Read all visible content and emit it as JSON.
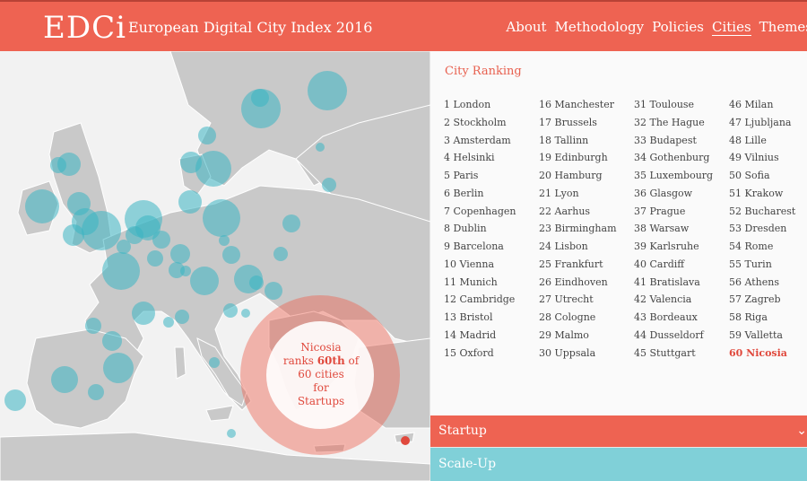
{
  "header": {
    "logo": "EDCi",
    "subtitle": "European Digital City Index 2016",
    "nav": [
      {
        "label": "About"
      },
      {
        "label": "Methodology"
      },
      {
        "label": "Policies"
      },
      {
        "label": "Cities",
        "active": true
      },
      {
        "label": "Themes"
      }
    ]
  },
  "colors": {
    "brand": "#ee6352",
    "bubble": "#3ab4c2",
    "scaleup": "#80d0d8",
    "highlight": "#e0493d"
  },
  "callout": {
    "line1": "Nicosia",
    "line2_pre": "ranks ",
    "line2_bold": "60th",
    "line2_post": " of",
    "line3": "60 cities",
    "line4": "for",
    "line5": "Startups"
  },
  "ranking": {
    "title": "City Ranking",
    "columns": [
      [
        "1 London",
        "2 Stockholm",
        "3 Amsterdam",
        "4 Helsinki",
        "5 Paris",
        "6 Berlin",
        "7 Copenhagen",
        "8 Dublin",
        "9 Barcelona",
        "10 Vienna",
        "11 Munich",
        "12 Cambridge",
        "13 Bristol",
        "14 Madrid",
        "15 Oxford"
      ],
      [
        "16 Manchester",
        "17 Brussels",
        "18 Tallinn",
        "19 Edinburgh",
        "20 Hamburg",
        "21 Lyon",
        "22 Aarhus",
        "23 Birmingham",
        "24 Lisbon",
        "25 Frankfurt",
        "26 Eindhoven",
        "27 Utrecht",
        "28 Cologne",
        "29 Malmo",
        "30 Uppsala"
      ],
      [
        "31 Toulouse",
        "32 The Hague",
        "33 Budapest",
        "34 Gothenburg",
        "35 Luxembourg",
        "36 Glasgow",
        "37 Prague",
        "38 Warsaw",
        "39 Karlsruhe",
        "40 Cardiff",
        "41 Bratislava",
        "42 Valencia",
        "43 Bordeaux",
        "44 Dusseldorf",
        "45 Stuttgart"
      ],
      [
        "46 Milan",
        "47 Ljubljana",
        "48 Lille",
        "49 Vilnius",
        "50 Sofia",
        "51 Krakow",
        "52 Bucharest",
        "53 Dresden",
        "54 Rome",
        "55 Turin",
        "56 Athens",
        "57 Zagreb",
        "58 Riga",
        "59 Valletta",
        "60 Nicosia"
      ]
    ],
    "highlighted": "60 Nicosia"
  },
  "sections": {
    "startup": "Startup",
    "scaleup": "Scale-Up",
    "chevron_icon": "chevron-down-icon"
  }
}
